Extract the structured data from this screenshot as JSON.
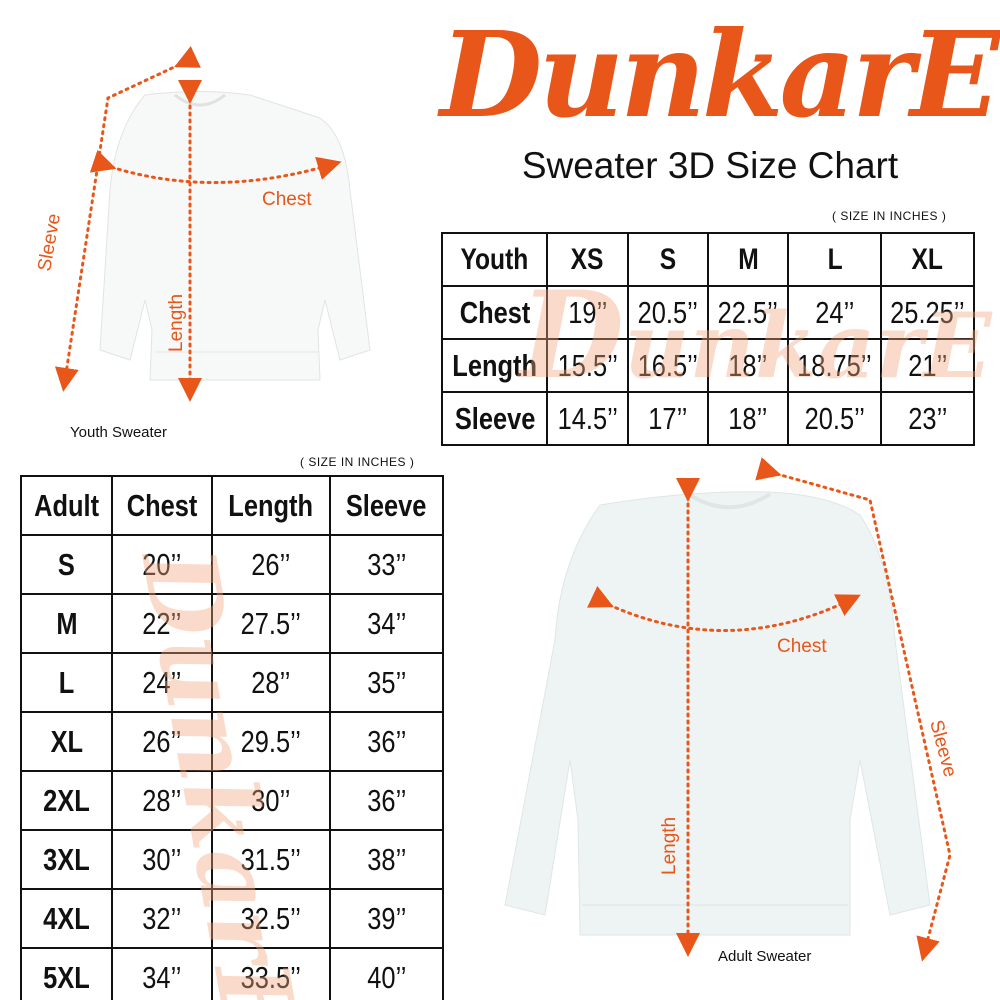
{
  "brand": {
    "logo_text": "DunkarE",
    "color": "#e8561a"
  },
  "title": "Sweater 3D Size Chart",
  "youth_chart": {
    "units_note": "( SIZE IN INCHES )",
    "header": [
      "Youth",
      "XS",
      "S",
      "M",
      "L",
      "XL"
    ],
    "rows": [
      [
        "Chest",
        "19’’",
        "20.5’’",
        "22.5’’",
        "24’’",
        "25.25’’"
      ],
      [
        "Length",
        "15.5’’",
        "16.5’’",
        "18’’",
        "18.75’’",
        "21’’"
      ],
      [
        "Sleeve",
        "14.5’’",
        "17’’",
        "18’’",
        "20.5’’",
        "23’’"
      ]
    ]
  },
  "adult_chart": {
    "units_note": "( SIZE IN INCHES )",
    "header": [
      "Adult",
      "Chest",
      "Length",
      "Sleeve"
    ],
    "rows": [
      [
        "S",
        "20’’",
        "26’’",
        "33’’"
      ],
      [
        "M",
        "22’’",
        "27.5’’",
        "34’’"
      ],
      [
        "L",
        "24’’",
        "28’’",
        "35’’"
      ],
      [
        "XL",
        "26’’",
        "29.5’’",
        "36’’"
      ],
      [
        "2XL",
        "28’’",
        "30’’",
        "36’’"
      ],
      [
        "3XL",
        "30’’",
        "31.5’’",
        "38’’"
      ],
      [
        "4XL",
        "32’’",
        "32.5’’",
        "39’’"
      ],
      [
        "5XL",
        "34’’",
        "33.5’’",
        "40’’"
      ]
    ]
  },
  "youth_sweater": {
    "caption": "Youth Sweater",
    "labels": {
      "chest": "Chest",
      "length": "Length",
      "sleeve": "Sleeve"
    }
  },
  "adult_sweater": {
    "caption": "Adult Sweater",
    "labels": {
      "chest": "Chest",
      "length": "Length",
      "sleeve": "Sleeve"
    }
  }
}
